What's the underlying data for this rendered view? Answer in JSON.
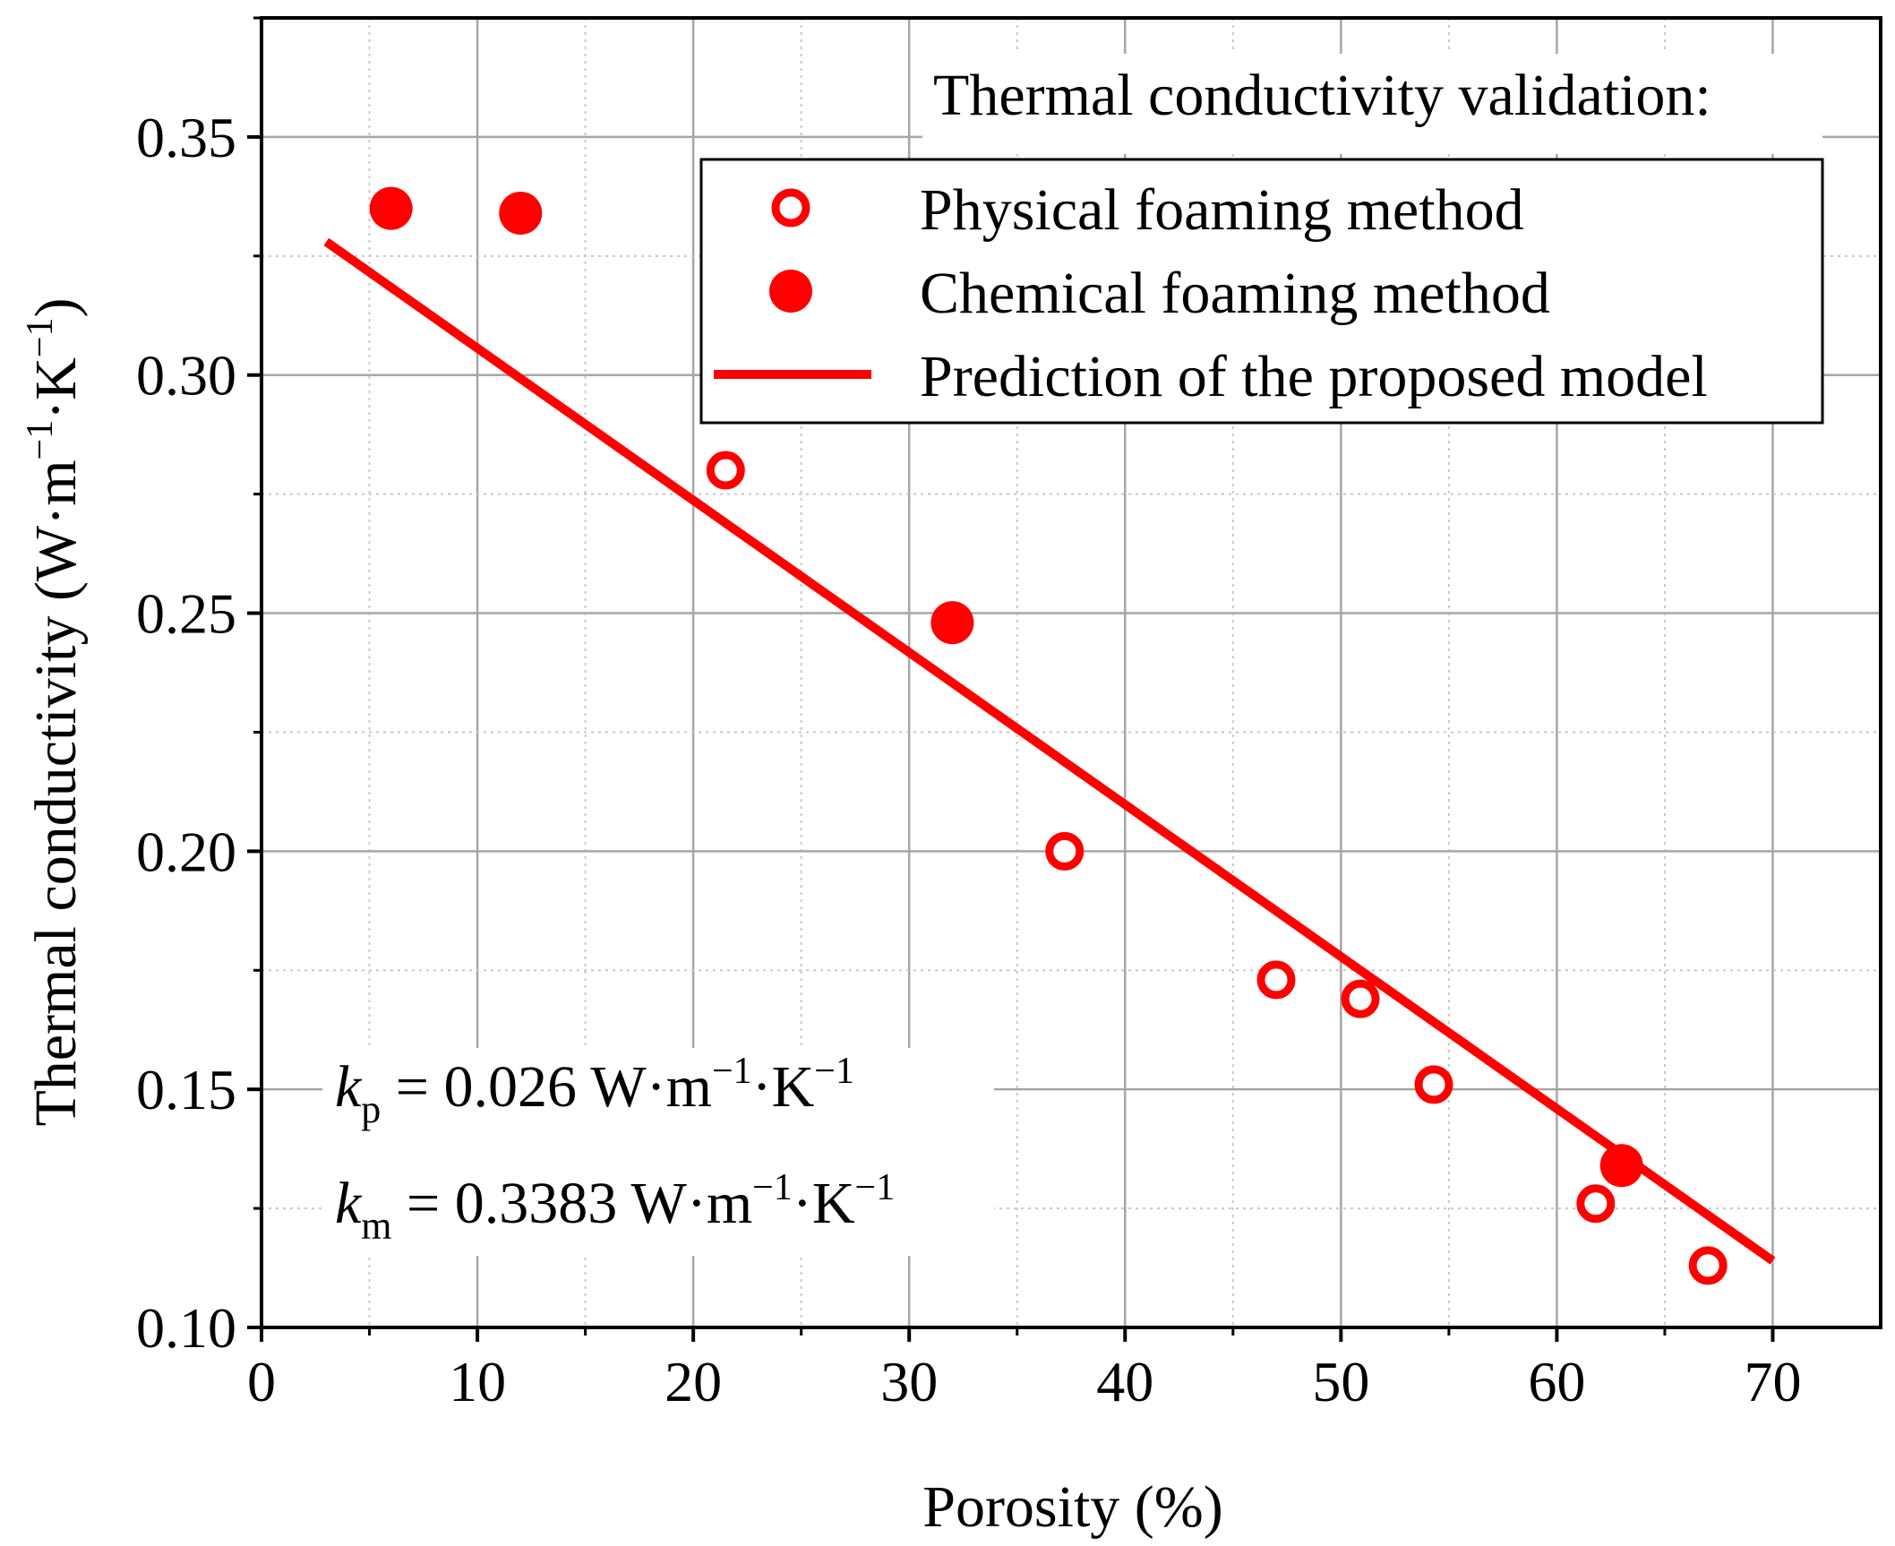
{
  "chart_data": {
    "type": "scatter",
    "title": "",
    "xlabel": "Porosity (%)",
    "ylabel_main": "Thermal conductivity (W·m",
    "ylabel_sup1": "−1",
    "ylabel_mid": "·K",
    "ylabel_sup2": "−1",
    "ylabel_end": ")",
    "xlim": [
      0,
      75
    ],
    "ylim": [
      0.1,
      0.375
    ],
    "x_ticks": [
      0,
      10,
      20,
      30,
      40,
      50,
      60,
      70
    ],
    "y_ticks": [
      0.1,
      0.15,
      0.2,
      0.25,
      0.3,
      0.35
    ],
    "x_tick_labels": [
      "0",
      "10",
      "20",
      "30",
      "40",
      "50",
      "60",
      "70"
    ],
    "y_tick_labels": [
      "0.10",
      "0.15",
      "0.20",
      "0.25",
      "0.30",
      "0.35"
    ],
    "grid": true,
    "color": "#ff0000",
    "legend": {
      "title": "Thermal conductivity validation:",
      "position": "top-right",
      "entries": [
        {
          "label": "Physical foaming method",
          "marker": "open-circle"
        },
        {
          "label": "Chemical foaming method",
          "marker": "filled-circle"
        },
        {
          "label": "Prediction of the proposed model",
          "marker": "line"
        }
      ]
    },
    "series": [
      {
        "name": "Physical foaming method",
        "marker": "open-circle",
        "x": [
          21.5,
          37.2,
          47.0,
          50.9,
          54.3,
          61.8,
          67.0
        ],
        "y": [
          0.28,
          0.2,
          0.173,
          0.169,
          0.151,
          0.126,
          0.113
        ]
      },
      {
        "name": "Chemical foaming method",
        "marker": "filled-circle",
        "x": [
          6.0,
          12.0,
          32.0,
          63.0
        ],
        "y": [
          0.335,
          0.334,
          0.248,
          0.134
        ]
      },
      {
        "name": "Prediction of the proposed model",
        "marker": "line",
        "x": [
          3.0,
          70.0
        ],
        "y": [
          0.328,
          0.114
        ]
      }
    ],
    "annotations": [
      {
        "symbol": "k",
        "sub": "p",
        "value": " = 0.026 W·m",
        "sup1": "−1",
        "mid": "·K",
        "sup2": "−1"
      },
      {
        "symbol": "k",
        "sub": "m",
        "value": " = 0.3383 W·m",
        "sup1": "−1",
        "mid": "·K",
        "sup2": "−1"
      }
    ]
  }
}
